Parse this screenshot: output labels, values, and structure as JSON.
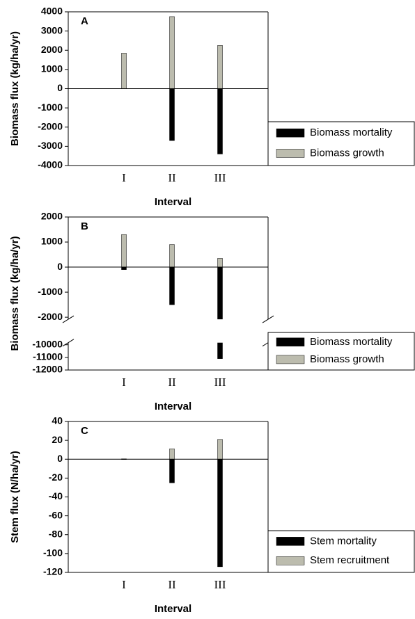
{
  "chart_data": [
    {
      "type": "bar",
      "panel_label": "A",
      "y_label": "Biomass flux (kg/ha/yr)",
      "x_label": "Interval",
      "categories": [
        "I",
        "II",
        "III"
      ],
      "series": [
        {
          "name": "Biomass mortality",
          "color": "#000000",
          "values": [
            null,
            -2700,
            -3400
          ]
        },
        {
          "name": "Biomass growth",
          "color": "#bcbcae",
          "values": [
            1850,
            3750,
            2250
          ]
        }
      ],
      "ylim": [
        -4000,
        4000
      ],
      "yticks": [
        -4000,
        -3000,
        -2000,
        -1000,
        0,
        1000,
        2000,
        3000,
        4000
      ],
      "legend": "lower-right"
    },
    {
      "type": "bar",
      "panel_label": "B",
      "y_label": "Biomass flux (kg/ha/yr)",
      "x_label": "Interval",
      "categories": [
        "I",
        "II",
        "III"
      ],
      "series": [
        {
          "name": "Biomass mortality",
          "color": "#000000",
          "values": [
            -100,
            -1500,
            -11100
          ]
        },
        {
          "name": "Biomass growth",
          "color": "#bcbcae",
          "values": [
            1300,
            900,
            350
          ]
        }
      ],
      "ylim": [
        -12000,
        2000
      ],
      "ybreak": [
        -10000,
        -2000
      ],
      "yticks": [
        -12000,
        -11000,
        -10000,
        -2000,
        -1000,
        0,
        1000,
        2000
      ],
      "legend": "lower-right"
    },
    {
      "type": "bar",
      "panel_label": "C",
      "y_label": "Stem flux (N/ha/yr)",
      "x_label": "Interval",
      "categories": [
        "I",
        "II",
        "III"
      ],
      "series": [
        {
          "name": "Stem mortality",
          "color": "#000000",
          "values": [
            null,
            -25,
            -114
          ]
        },
        {
          "name": "Stem recruitment",
          "color": "#bcbcae",
          "values": [
            0.4,
            11,
            21
          ]
        }
      ],
      "ylim": [
        -120,
        40
      ],
      "yticks": [
        -120,
        -100,
        -80,
        -60,
        -40,
        -20,
        0,
        20,
        40
      ],
      "legend": "lower-right"
    }
  ]
}
